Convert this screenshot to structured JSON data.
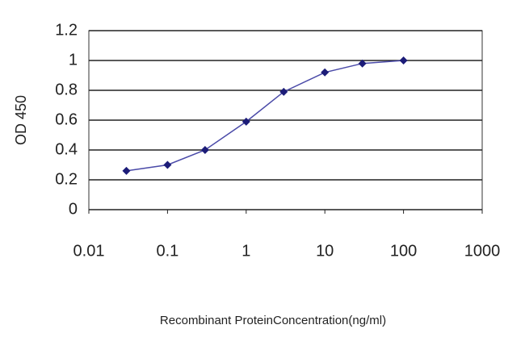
{
  "chart_data": {
    "type": "line",
    "x_label": "Recombinant ProteinConcentration(ng/ml)",
    "y_label": "OD 450",
    "x": [
      0.03,
      0.1,
      0.3,
      1,
      3,
      10,
      30,
      100
    ],
    "values": [
      0.26,
      0.3,
      0.4,
      0.59,
      0.79,
      0.92,
      0.98,
      1.0
    ],
    "xlim": [
      0.01,
      1000
    ],
    "xticks": [
      0.01,
      0.1,
      1,
      10,
      100,
      1000
    ],
    "ylim": [
      0,
      1.2
    ],
    "yticks": [
      0,
      0.2,
      0.4,
      0.6,
      0.8,
      1,
      1.2
    ],
    "x_log": true,
    "grid": true,
    "color": "#4a4aa8",
    "marker_color": "#1c1c78"
  }
}
